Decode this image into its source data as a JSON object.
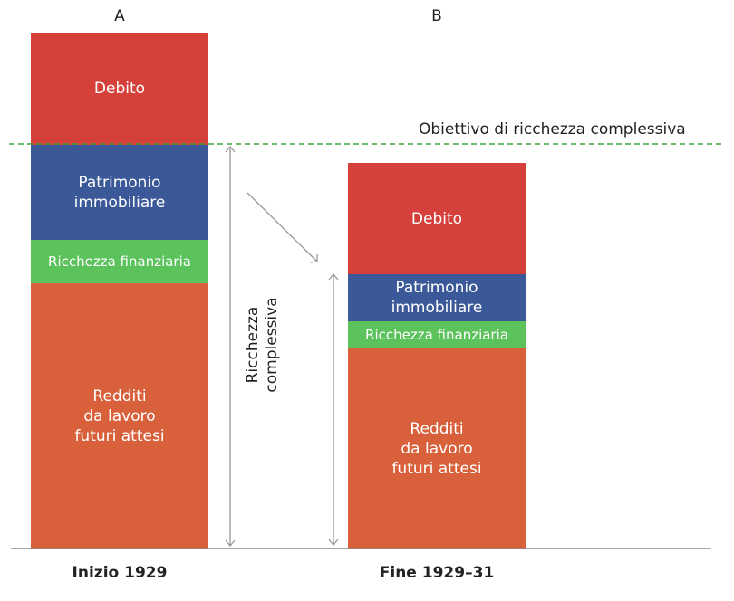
{
  "columns": [
    {
      "letter": "A",
      "label": "Inizio 1929",
      "segments": {
        "debito": "Debito",
        "patrimonio": "Patrimonio\nimmobiliare",
        "finanziaria": "Ricchezza finanziaria",
        "redditi": "Redditi\nda lavoro\nfuturi attesi"
      }
    },
    {
      "letter": "B",
      "label": "Fine 1929–31",
      "segments": {
        "debito": "Debito",
        "patrimonio": "Patrimonio\nimmobiliare",
        "finanziaria": "Ricchezza finanziaria",
        "redditi": "Redditi\nda lavoro\nfuturi attesi"
      }
    }
  ],
  "target_line_label": "Obiettivo di ricchezza complessiva",
  "wealth_label": "Ricchezza\ncomplessiva",
  "colors": {
    "debito": "#d5413a",
    "patrimonio": "#3b5998",
    "finanziaria": "#5cc25c",
    "redditi": "#d8613c",
    "target_line": "#3aa63a",
    "arrows": "#999999"
  }
}
